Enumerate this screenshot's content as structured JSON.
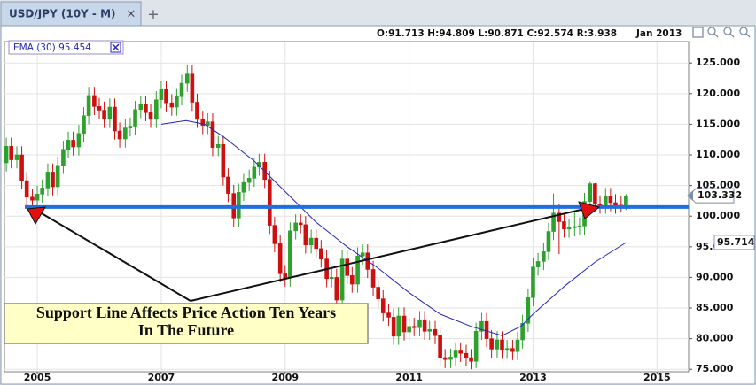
{
  "chart_data": {
    "type": "candlestick",
    "tab_title": "USD/JPY (10Y - M)",
    "ohlc_info": "O:91.713 H:94.809 L:90.871 C:92.574 R:3.938",
    "date_info": "Jan 2013",
    "up_color": "#2ea02e",
    "down_color": "#cc1010",
    "x": [
      2004.5,
      2004.58,
      2004.67,
      2004.75,
      2004.83,
      2004.92,
      2005.0,
      2005.08,
      2005.17,
      2005.25,
      2005.33,
      2005.42,
      2005.5,
      2005.58,
      2005.67,
      2005.75,
      2005.83,
      2005.92,
      2006.0,
      2006.08,
      2006.17,
      2006.25,
      2006.33,
      2006.42,
      2006.5,
      2006.58,
      2006.67,
      2006.75,
      2006.83,
      2006.92,
      2007.0,
      2007.08,
      2007.17,
      2007.25,
      2007.33,
      2007.42,
      2007.5,
      2007.58,
      2007.67,
      2007.75,
      2007.83,
      2007.92,
      2008.0,
      2008.08,
      2008.17,
      2008.25,
      2008.33,
      2008.42,
      2008.5,
      2008.58,
      2008.67,
      2008.75,
      2008.83,
      2008.92,
      2009.0,
      2009.08,
      2009.17,
      2009.25,
      2009.33,
      2009.42,
      2009.5,
      2009.58,
      2009.67,
      2009.75,
      2009.83,
      2009.92,
      2010.0,
      2010.08,
      2010.17,
      2010.25,
      2010.33,
      2010.42,
      2010.5,
      2010.58,
      2010.67,
      2010.75,
      2010.83,
      2010.92,
      2011.0,
      2011.08,
      2011.17,
      2011.25,
      2011.33,
      2011.42,
      2011.5,
      2011.58,
      2011.67,
      2011.75,
      2011.83,
      2011.92,
      2012.0,
      2012.08,
      2012.17,
      2012.25,
      2012.33,
      2012.42,
      2012.5,
      2012.58,
      2012.67,
      2012.75,
      2012.83,
      2012.92,
      2013.0,
      2013.08,
      2013.17,
      2013.25,
      2013.33,
      2013.42,
      2013.5,
      2013.58,
      2013.67,
      2013.75,
      2013.83,
      2013.92,
      2014.0,
      2014.08,
      2014.17,
      2014.25,
      2014.33,
      2014.42,
      2014.5
    ],
    "open": [
      108.7,
      111.4,
      109.2,
      110.0,
      105.8,
      103.1,
      102.6,
      103.6,
      104.6,
      107.2,
      104.8,
      108.3,
      110.9,
      112.4,
      111.3,
      113.5,
      116.4,
      119.7,
      117.9,
      117.3,
      115.8,
      117.8,
      113.9,
      112.6,
      114.4,
      114.7,
      117.4,
      118.2,
      116.9,
      115.8,
      119.0,
      120.7,
      118.5,
      117.8,
      119.5,
      121.7,
      123.2,
      118.6,
      115.8,
      114.8,
      115.4,
      111.2,
      111.7,
      106.4,
      103.7,
      99.7,
      103.9,
      105.5,
      106.2,
      108.0,
      108.8,
      106.0,
      98.5,
      95.5,
      90.6,
      89.9,
      97.6,
      98.9,
      98.6,
      95.3,
      96.4,
      94.7,
      93.0,
      89.8,
      90.0,
      86.3,
      93.0,
      90.3,
      88.9,
      93.5,
      94.0,
      91.3,
      88.4,
      86.5,
      84.2,
      83.5,
      80.4,
      83.7,
      81.1,
      82.0,
      81.8,
      83.1,
      81.2,
      81.5,
      80.5,
      76.9,
      76.6,
      77.0,
      78.0,
      77.6,
      76.9,
      76.3,
      81.2,
      82.8,
      80.0,
      78.3,
      79.8,
      78.1,
      78.4,
      77.9,
      79.8,
      82.5,
      86.7,
      91.7,
      92.6,
      94.2,
      97.5,
      100.5,
      99.1,
      97.9,
      98.1,
      98.3,
      98.4,
      102.4,
      105.3,
      102.0,
      101.8,
      103.2,
      102.2,
      101.8,
      101.3
    ],
    "high": [
      112.8,
      112.8,
      111.4,
      111.4,
      107.2,
      104.5,
      105.0,
      106.0,
      108.6,
      108.6,
      109.7,
      112.3,
      113.8,
      113.8,
      114.9,
      117.8,
      121.1,
      121.1,
      119.3,
      118.7,
      119.2,
      119.2,
      115.3,
      115.8,
      116.1,
      118.8,
      119.6,
      119.6,
      118.3,
      120.4,
      122.1,
      122.1,
      119.9,
      120.9,
      123.1,
      124.6,
      124.6,
      120.0,
      117.2,
      116.8,
      116.8,
      113.1,
      113.1,
      107.8,
      105.1,
      105.3,
      106.9,
      107.6,
      109.4,
      110.2,
      110.2,
      107.4,
      99.9,
      96.9,
      92.0,
      99.0,
      100.3,
      100.3,
      100.0,
      97.8,
      97.8,
      96.1,
      94.4,
      91.4,
      91.4,
      94.4,
      94.4,
      91.7,
      94.9,
      95.4,
      95.4,
      92.7,
      89.8,
      87.9,
      85.6,
      84.9,
      85.1,
      85.1,
      83.4,
      83.4,
      84.5,
      84.5,
      82.9,
      82.9,
      81.9,
      78.3,
      78.4,
      79.4,
      79.4,
      79.0,
      78.3,
      82.6,
      84.2,
      84.2,
      81.4,
      81.2,
      81.2,
      79.8,
      79.8,
      81.2,
      83.9,
      88.1,
      93.1,
      94.0,
      95.6,
      98.9,
      103.7,
      101.9,
      100.5,
      99.5,
      100.6,
      99.8,
      103.8,
      105.6,
      105.4,
      103.4,
      104.6,
      104.6,
      103.6,
      103.2,
      103.6
    ],
    "low": [
      107.3,
      107.8,
      107.8,
      104.4,
      101.7,
      101.2,
      101.2,
      102.2,
      103.2,
      103.4,
      103.4,
      106.9,
      109.5,
      109.9,
      109.9,
      112.1,
      115.0,
      116.5,
      115.9,
      114.4,
      114.4,
      112.5,
      111.2,
      111.2,
      113.0,
      113.3,
      116.0,
      115.5,
      114.4,
      114.4,
      117.6,
      117.1,
      116.4,
      116.4,
      118.1,
      120.3,
      117.2,
      114.4,
      113.4,
      113.4,
      109.8,
      109.8,
      105.0,
      102.3,
      98.3,
      98.3,
      102.5,
      104.1,
      104.8,
      106.6,
      104.6,
      97.1,
      94.1,
      89.2,
      88.5,
      88.5,
      96.2,
      97.2,
      93.9,
      93.9,
      93.3,
      91.6,
      88.4,
      88.4,
      84.9,
      84.9,
      88.9,
      87.5,
      87.5,
      92.1,
      89.9,
      87.0,
      85.1,
      82.8,
      82.1,
      79.0,
      79.0,
      79.7,
      79.7,
      80.4,
      80.4,
      79.8,
      79.8,
      79.1,
      75.5,
      75.2,
      75.2,
      75.6,
      76.2,
      75.5,
      75.0,
      75.2,
      79.8,
      78.6,
      76.9,
      76.9,
      76.7,
      76.7,
      76.5,
      76.5,
      78.4,
      81.1,
      85.3,
      90.3,
      91.2,
      92.8,
      96.1,
      93.8,
      96.5,
      96.5,
      96.7,
      96.9,
      97.0,
      101.0,
      100.8,
      100.4,
      100.4,
      100.8,
      100.4,
      100.6,
      101.0
    ],
    "close": [
      111.4,
      109.2,
      110.0,
      105.8,
      103.1,
      102.6,
      103.6,
      104.6,
      107.2,
      104.8,
      108.3,
      110.9,
      112.4,
      111.3,
      113.5,
      116.4,
      119.7,
      117.9,
      117.3,
      115.8,
      117.8,
      113.9,
      112.6,
      114.4,
      114.7,
      117.4,
      118.2,
      116.9,
      115.8,
      119.0,
      120.7,
      118.5,
      117.8,
      119.5,
      121.7,
      123.2,
      118.6,
      115.8,
      114.8,
      115.4,
      111.2,
      111.7,
      106.4,
      103.7,
      99.7,
      103.9,
      105.5,
      106.2,
      108.0,
      108.8,
      106.0,
      98.5,
      95.5,
      90.6,
      89.9,
      97.6,
      98.9,
      98.6,
      95.3,
      96.4,
      94.7,
      93.0,
      89.8,
      90.0,
      86.3,
      93.0,
      90.3,
      88.9,
      93.5,
      94.0,
      91.3,
      88.4,
      86.5,
      84.2,
      83.5,
      80.4,
      83.7,
      81.1,
      82.0,
      81.8,
      83.1,
      81.2,
      81.5,
      80.5,
      76.9,
      76.6,
      77.0,
      78.0,
      77.6,
      76.9,
      76.3,
      81.2,
      82.8,
      80.0,
      78.3,
      79.8,
      78.1,
      78.4,
      77.9,
      79.8,
      82.5,
      86.7,
      91.7,
      92.6,
      94.2,
      97.5,
      100.5,
      99.1,
      97.9,
      98.1,
      98.3,
      98.4,
      102.4,
      105.3,
      102.0,
      101.8,
      103.2,
      102.2,
      101.8,
      101.3,
      103.3
    ],
    "ema": {
      "name": "EMA (30)",
      "value_label": "95.454",
      "color": "#2626b8",
      "x": [
        2007.0,
        2007.4,
        2007.7,
        2008.0,
        2008.5,
        2009.0,
        2009.5,
        2010.0,
        2010.5,
        2011.0,
        2011.5,
        2012.0,
        2012.5,
        2012.8,
        2013.0,
        2013.5,
        2014.0,
        2014.5
      ],
      "values": [
        115.0,
        115.6,
        115.0,
        113.0,
        109.0,
        104.0,
        99.0,
        95.0,
        91.5,
        87.5,
        84.0,
        82.0,
        80.5,
        82.0,
        84.0,
        88.5,
        92.5,
        95.7
      ]
    },
    "support_line": {
      "value": 101.5,
      "color": "#1f6fe0"
    },
    "last_price": 103.332,
    "ema_last": 95.714,
    "annotation": {
      "lines": [
        "Support Line Affects Price Action Ten Years",
        "In The Future"
      ]
    },
    "xlim": [
      2004.47,
      2015.51
    ],
    "xticks": [
      2005,
      2007,
      2009,
      2011,
      2013,
      2015
    ],
    "ylim": [
      74.6,
      128.5
    ],
    "yticks": [
      {
        "value": 75,
        "label": "75.000"
      },
      {
        "value": 80,
        "label": "80.000"
      },
      {
        "value": 85,
        "label": "85.000"
      },
      {
        "value": 90,
        "label": "90.000"
      },
      {
        "value": 95,
        "label": "95.000"
      },
      {
        "value": 100,
        "label": "100.000"
      },
      {
        "value": 105,
        "label": "105.000"
      },
      {
        "value": 110,
        "label": "110.000"
      },
      {
        "value": 115,
        "label": "115.000"
      },
      {
        "value": 120,
        "label": "120.000"
      },
      {
        "value": 125,
        "label": "125.000"
      }
    ],
    "grid": true
  }
}
